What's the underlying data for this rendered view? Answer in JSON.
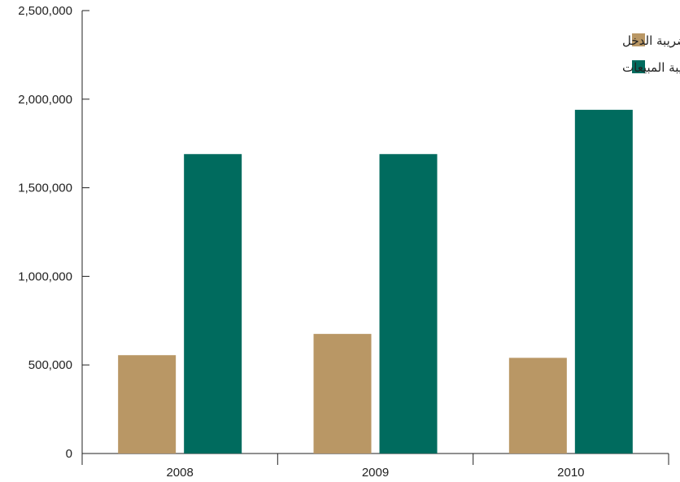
{
  "chart_data": {
    "type": "bar",
    "categories": [
      "2008",
      "2009",
      "2010"
    ],
    "series": [
      {
        "name": "إيراد ضريبة الدخل",
        "color": "#b99765",
        "values": [
          555000,
          675000,
          540000
        ]
      },
      {
        "name": "إيراد ضريبة المبيعات",
        "color": "#006b5e",
        "values": [
          1690000,
          1690000,
          1940000
        ]
      }
    ],
    "yticks": [
      "0",
      "500,000",
      "1,000,000",
      "1,500,000",
      "2,000,000",
      "2,500,000"
    ],
    "ylim": [
      0,
      2500000
    ],
    "title": "",
    "xlabel": "",
    "ylabel": "",
    "grid": false,
    "legend_position": "top-right"
  }
}
